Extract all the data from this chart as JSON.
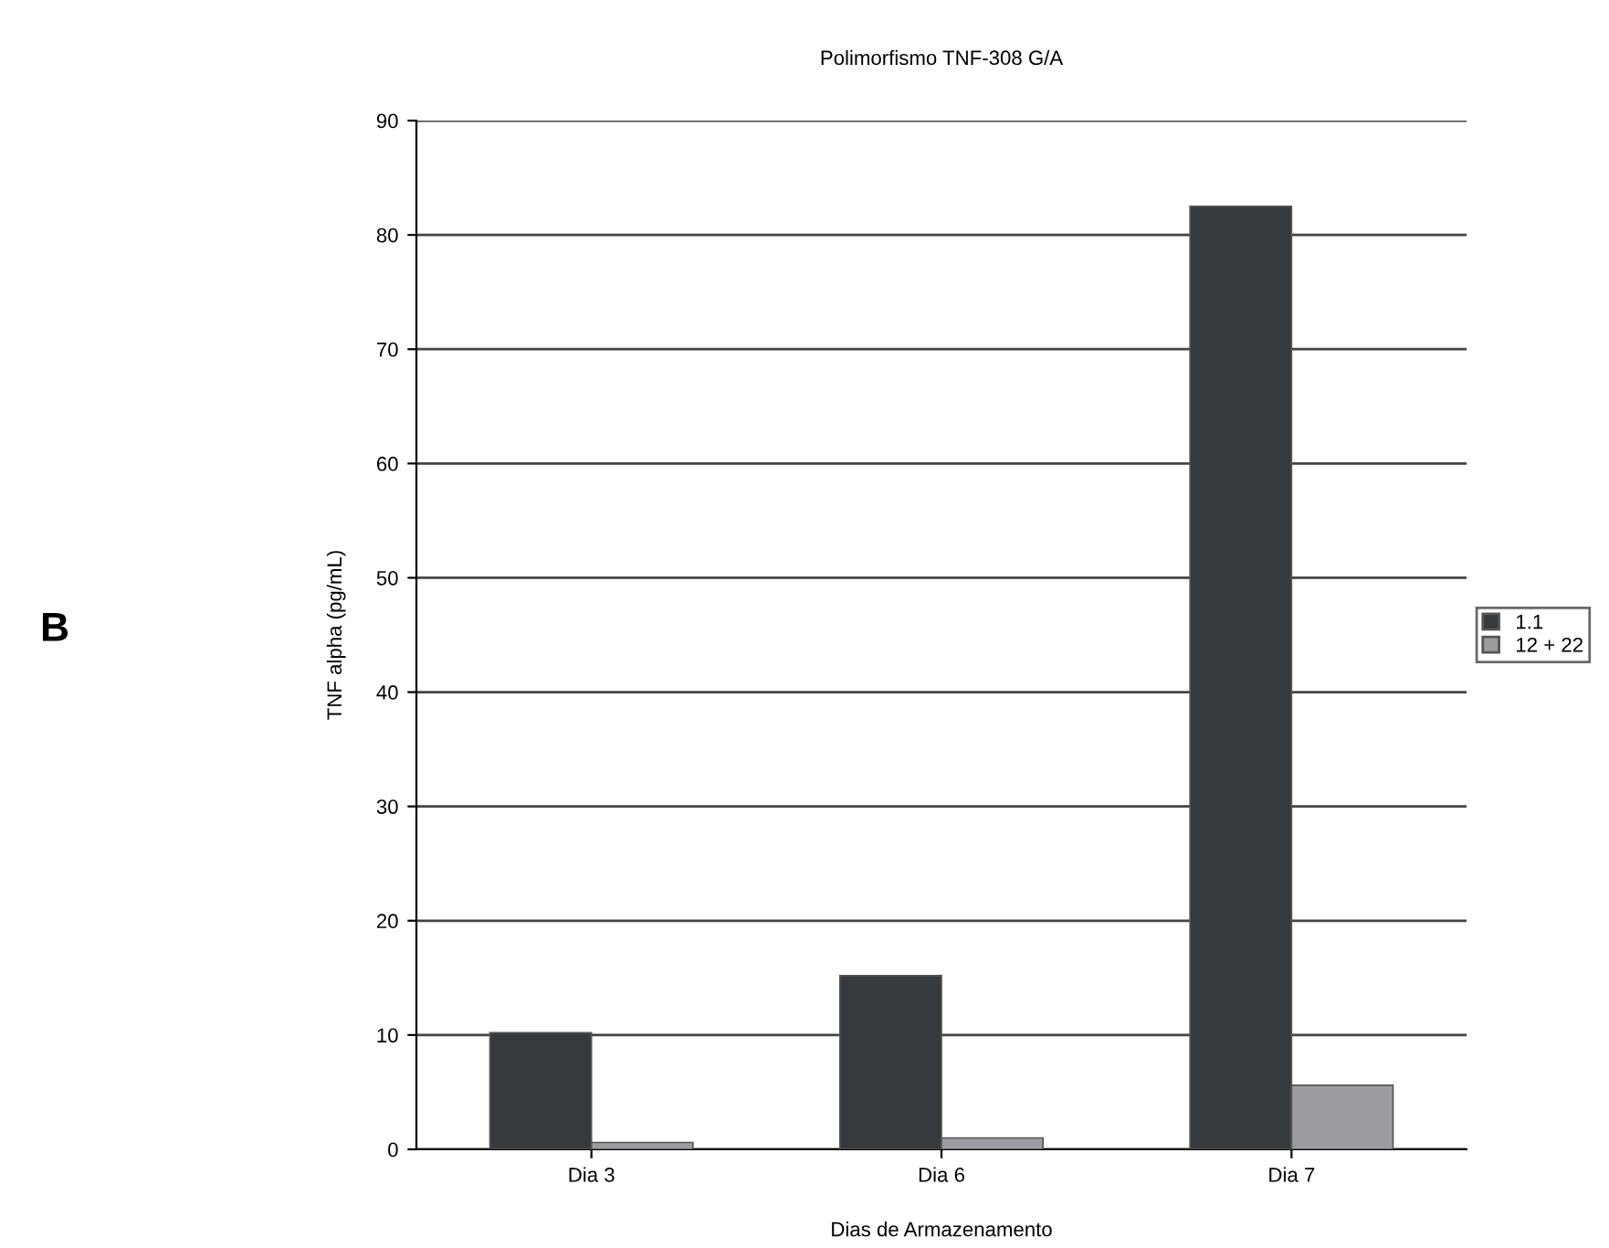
{
  "chart_data": {
    "type": "bar",
    "title": "Polimorfismo TNF-308 G/A",
    "xlabel": "Dias de Armazenamento",
    "ylabel": "TNF alpha (pg/mL)",
    "categories": [
      "Dia 3",
      "Dia 6",
      "Dia 7"
    ],
    "series": [
      {
        "name": "1.1",
        "color": "#353a3e",
        "values": [
          10.2,
          15.2,
          82.5
        ]
      },
      {
        "name": "12 + 22",
        "color": "#9a9ca0",
        "values": [
          0.6,
          1.0,
          5.6
        ]
      }
    ],
    "ylim": [
      0,
      90
    ],
    "yticks": [
      0,
      10,
      20,
      30,
      40,
      50,
      60,
      70,
      80,
      90
    ],
    "grid": "y",
    "legend": "right",
    "annotations": [
      "B"
    ]
  }
}
